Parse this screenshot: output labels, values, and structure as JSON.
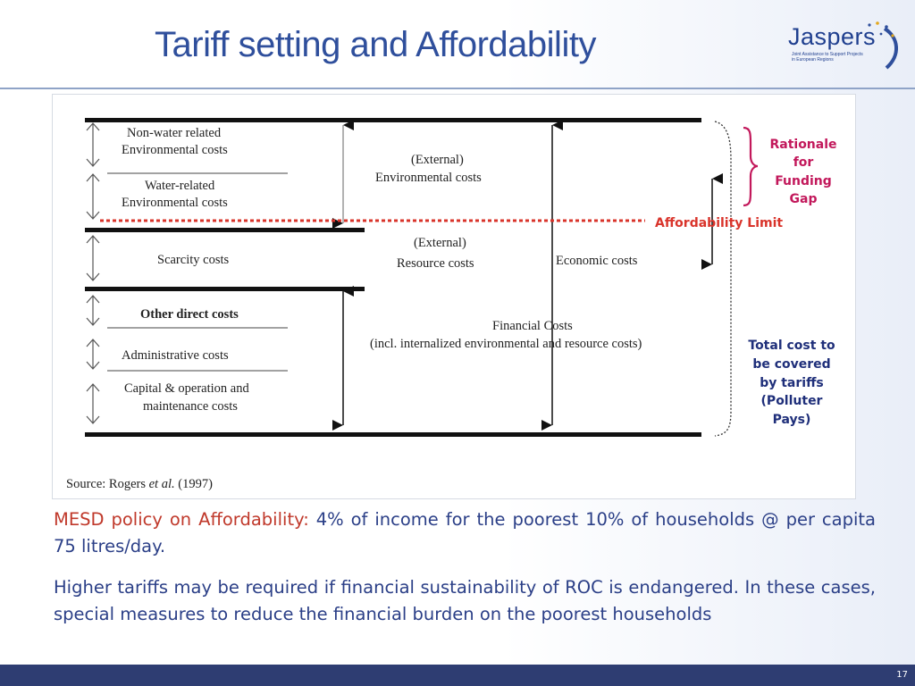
{
  "slide": {
    "title": "Tariff setting and Affordability",
    "page_number": "17"
  },
  "logo": {
    "word": "Jaspers",
    "tagline": "Joint Assistance to Support Projects in European Regions"
  },
  "figure": {
    "left_labels": {
      "non_water_line1": "Non-water related",
      "non_water_line2": "Environmental costs",
      "water_line1": "Water-related",
      "water_line2": "Environmental costs",
      "scarcity": "Scarcity costs",
      "other_direct": "Other direct costs",
      "administrative": "Administrative costs",
      "capital_line1": "Capital & operation and",
      "capital_line2": "maintenance costs"
    },
    "middle_labels": {
      "external_env_line1": "(External)",
      "external_env_line2": "Environmental costs",
      "external_res_line1": "(External)",
      "external_res_line2": "Resource costs",
      "economic": "Economic costs",
      "financial_line1": "Financial Costs",
      "financial_line2": "(incl. internalized environmental and resource costs)"
    },
    "source_prefix": "Source: Rogers ",
    "source_etal": "et al.",
    "source_year": " (1997)"
  },
  "annotations": {
    "rationale": [
      "Rationale",
      "for",
      "Funding",
      "Gap"
    ],
    "affordability_limit": "Affordability Limit",
    "total_cost": [
      "Total cost to",
      "be covered",
      "by tariffs",
      "(Polluter",
      "Pays)"
    ],
    "colors": {
      "red": "#d9342b",
      "magenta": "#c2185b",
      "navy": "#1f2f7a"
    }
  },
  "body": {
    "p1_lead": "MESD policy on Affordability:",
    "p1_rest": " 4% of income for the poorest 10% of households @ per capita 75 litres/day.",
    "p2": "Higher tariffs may be required if financial sustainability of ROC is endangered. In these cases, special measures to reduce the financial burden on the poorest households"
  }
}
